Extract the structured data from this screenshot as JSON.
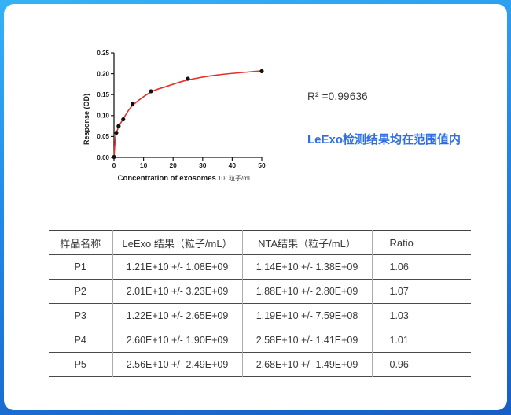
{
  "page": {
    "background_top": "#35b2f6",
    "background_bottom": "#155fc6",
    "card_color": "#ffffff"
  },
  "stats": {
    "r_squared": "R² =0.99636",
    "note": "LeExo检测结果均在范围值内",
    "note_color": "#2e6ee2"
  },
  "chart_data": [
    {
      "type": "scatter",
      "title": "",
      "xlabel": "Concentration of exosomes",
      "xlabel_unit": "10⁷ 粒子/mL",
      "ylabel": "Response (OD)",
      "xlim": [
        0,
        50
      ],
      "ylim": [
        0,
        0.25
      ],
      "x_ticks": [
        0,
        10,
        20,
        30,
        40,
        50
      ],
      "y_ticks": [
        0.0,
        0.05,
        0.1,
        0.15,
        0.2,
        0.25
      ],
      "grid": false,
      "legend": "none",
      "point_color": "#111111",
      "curve_color": "#e8302a",
      "axis_color": "#1a1a1a",
      "points": [
        [
          0,
          0.001
        ],
        [
          0.78,
          0.059
        ],
        [
          1.56,
          0.075
        ],
        [
          3.13,
          0.091
        ],
        [
          6.25,
          0.128
        ],
        [
          12.5,
          0.158
        ],
        [
          25,
          0.188
        ],
        [
          50,
          0.206
        ]
      ],
      "fit_curve": [
        [
          0,
          0
        ],
        [
          0.4,
          0.04
        ],
        [
          0.78,
          0.057
        ],
        [
          1.56,
          0.073
        ],
        [
          3.13,
          0.092
        ],
        [
          6.25,
          0.124
        ],
        [
          12.5,
          0.156
        ],
        [
          18,
          0.17
        ],
        [
          25,
          0.185
        ],
        [
          35,
          0.197
        ],
        [
          50,
          0.207
        ]
      ]
    },
    {
      "type": "table",
      "columns": [
        "样品名称",
        "LeExo 结果（粒子/mL）",
        "NTA结果（粒子/mL）",
        "Ratio"
      ],
      "rows": [
        [
          "P1",
          "1.21E+10 +/- 1.08E+09",
          "1.14E+10 +/- 1.38E+09",
          "1.06"
        ],
        [
          "P2",
          "2.01E+10 +/- 3.23E+09",
          "1.88E+10 +/- 2.80E+09",
          "1.07"
        ],
        [
          "P3",
          "1.22E+10 +/- 2.65E+09",
          "1.19E+10 +/- 7.59E+08",
          "1.03"
        ],
        [
          "P4",
          "2.60E+10 +/- 1.90E+09",
          "2.58E+10 +/- 1.41E+09",
          "1.01"
        ],
        [
          "P5",
          "2.56E+10 +/- 2.49E+09",
          "2.68E+10 +/- 1.49E+09",
          "0.96"
        ]
      ]
    }
  ]
}
